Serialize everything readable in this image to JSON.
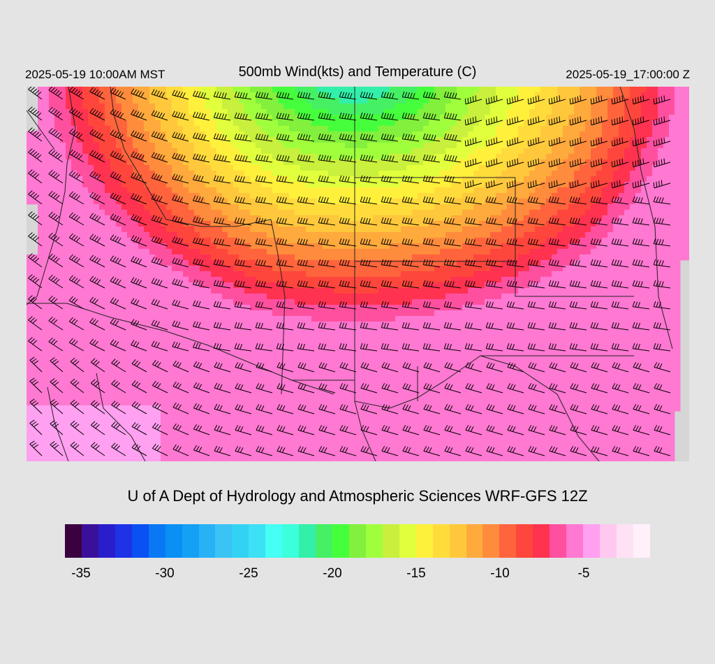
{
  "header": {
    "title": "500mb Wind(kts) and Temperature (C)",
    "local_time": "2025-05-19 10:00AM MST",
    "utc_time": "2025-05-19_17:00:00 Z"
  },
  "footer": {
    "credit": "U of A Dept of Hydrology and Atmospheric Sciences WRF-GFS 12Z"
  },
  "colorbar": {
    "units": "C",
    "colors": [
      "#3a0040",
      "#3a109a",
      "#2a1ecc",
      "#1e32e6",
      "#0a50f2",
      "#0a78f5",
      "#0a8ff5",
      "#14a0f5",
      "#28b1f5",
      "#3cc3f5",
      "#32d2f5",
      "#3ce1f5",
      "#46fff5",
      "#3cffdc",
      "#32f0aa",
      "#46f064",
      "#46ff3c",
      "#82f03c",
      "#a0ff3c",
      "#c8f03c",
      "#e1ff3c",
      "#fff03c",
      "#ffdc3c",
      "#ffc83c",
      "#ffaa3c",
      "#ff8c3c",
      "#ff643c",
      "#ff463c",
      "#ff3250",
      "#ff50a0",
      "#ff78d2",
      "#ffa0f0",
      "#ffc8f0",
      "#ffe1f5",
      "#fff0fa"
    ],
    "tick_labels": [
      "-35",
      "-30",
      "-25",
      "-20",
      "-15",
      "-10",
      "-5"
    ]
  },
  "map": {
    "field": "500mb temperature",
    "barbs": "500mb wind (kts)",
    "wind_direction": "west to southwest",
    "temperature_range_c": [
      -24,
      -5
    ]
  }
}
